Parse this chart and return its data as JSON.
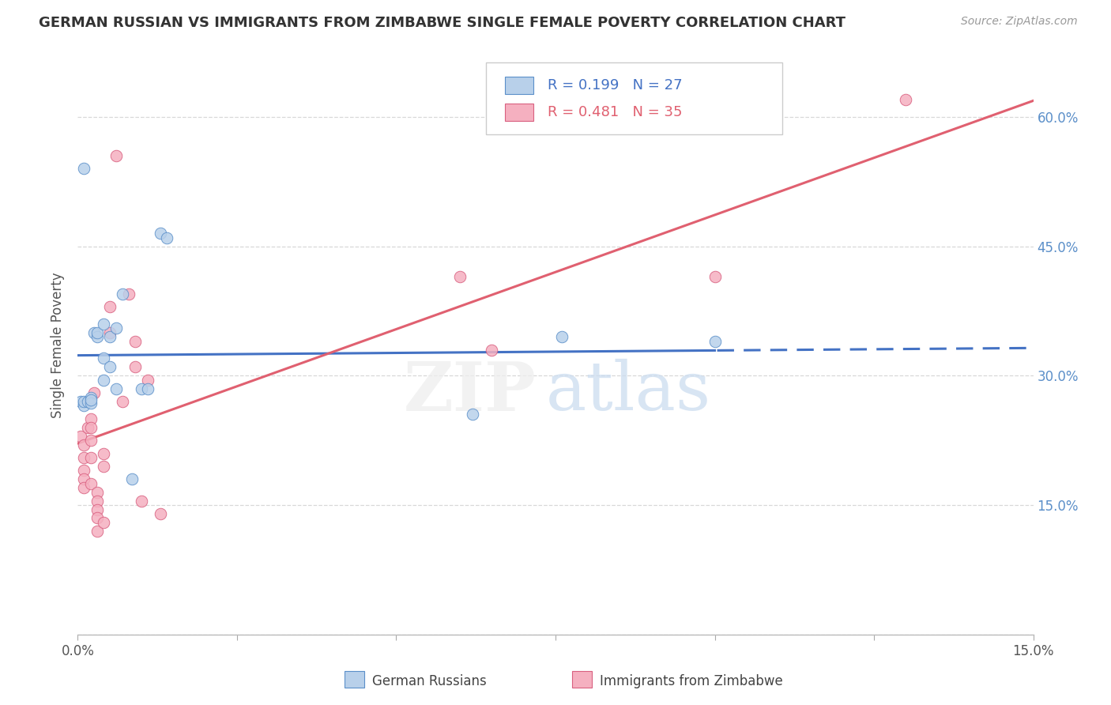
{
  "title": "GERMAN RUSSIAN VS IMMIGRANTS FROM ZIMBABWE SINGLE FEMALE POVERTY CORRELATION CHART",
  "source": "Source: ZipAtlas.com",
  "ylabel": "Single Female Poverty",
  "xlim": [
    0.0,
    0.15
  ],
  "ylim": [
    0.0,
    0.67
  ],
  "x_tick_positions": [
    0.0,
    0.025,
    0.05,
    0.075,
    0.1,
    0.125,
    0.15
  ],
  "x_tick_labels": [
    "0.0%",
    "",
    "",
    "",
    "",
    "",
    "15.0%"
  ],
  "y_tick_positions": [
    0.0,
    0.15,
    0.3,
    0.45,
    0.6
  ],
  "y_tick_labels_right": [
    "",
    "15.0%",
    "30.0%",
    "45.0%",
    "60.0%"
  ],
  "gr_x": [
    0.0005,
    0.001,
    0.001,
    0.001,
    0.0015,
    0.002,
    0.002,
    0.002,
    0.0025,
    0.003,
    0.003,
    0.004,
    0.004,
    0.004,
    0.005,
    0.005,
    0.006,
    0.006,
    0.007,
    0.0085,
    0.01,
    0.011,
    0.013,
    0.014,
    0.062,
    0.076,
    0.1
  ],
  "gr_y": [
    0.27,
    0.265,
    0.27,
    0.54,
    0.27,
    0.275,
    0.268,
    0.272,
    0.35,
    0.345,
    0.35,
    0.32,
    0.295,
    0.36,
    0.31,
    0.345,
    0.285,
    0.355,
    0.395,
    0.18,
    0.285,
    0.285,
    0.465,
    0.46,
    0.255,
    0.345,
    0.34
  ],
  "zim_x": [
    0.0005,
    0.001,
    0.001,
    0.001,
    0.001,
    0.001,
    0.0015,
    0.002,
    0.002,
    0.002,
    0.002,
    0.002,
    0.0025,
    0.003,
    0.003,
    0.003,
    0.003,
    0.003,
    0.004,
    0.004,
    0.004,
    0.005,
    0.005,
    0.006,
    0.007,
    0.008,
    0.009,
    0.009,
    0.01,
    0.011,
    0.013,
    0.06,
    0.065,
    0.1,
    0.13
  ],
  "zim_y": [
    0.23,
    0.22,
    0.205,
    0.19,
    0.18,
    0.17,
    0.24,
    0.25,
    0.24,
    0.225,
    0.205,
    0.175,
    0.28,
    0.165,
    0.155,
    0.145,
    0.135,
    0.12,
    0.21,
    0.195,
    0.13,
    0.38,
    0.35,
    0.555,
    0.27,
    0.395,
    0.34,
    0.31,
    0.155,
    0.295,
    0.14,
    0.415,
    0.33,
    0.415,
    0.62
  ],
  "gr_dot_fill": "#b8d0ea",
  "gr_dot_edge": "#5b8fc9",
  "zim_dot_fill": "#f5b0c0",
  "zim_dot_edge": "#d96080",
  "gr_line_color": "#4472c4",
  "zim_line_color": "#e06070",
  "R_gr": 0.199,
  "N_gr": 27,
  "R_zim": 0.481,
  "N_zim": 35,
  "label_gr": "German Russians",
  "label_zim": "Immigrants from Zimbabwe",
  "grid_color": "#d8d8d8",
  "title_fontsize": 13,
  "tick_fontsize": 12,
  "label_fontsize": 12,
  "dot_size": 110,
  "line_width": 2.2
}
